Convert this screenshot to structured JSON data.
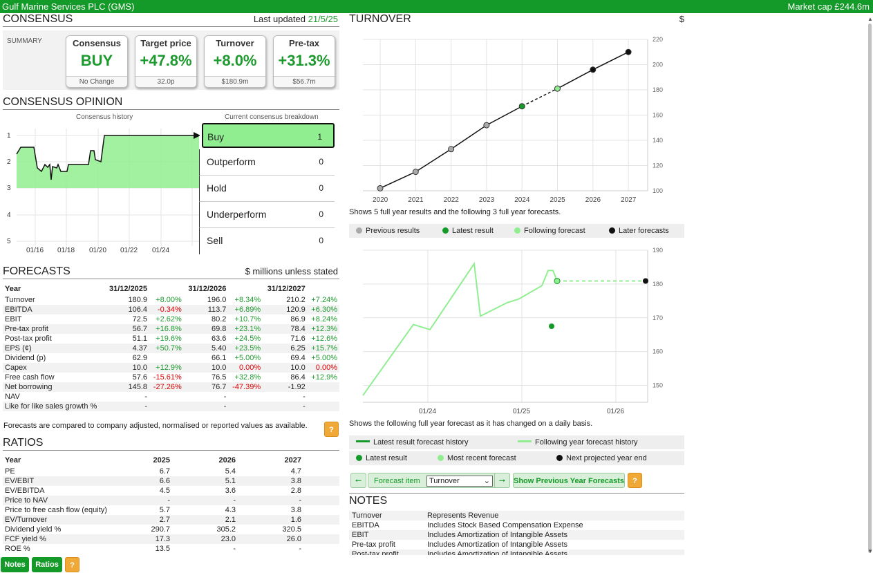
{
  "header": {
    "company": "Gulf Marine Services PLC (GMS)",
    "market_cap": "Market cap £244.6m"
  },
  "consensus": {
    "title": "CONSENSUS",
    "last_updated_label": "Last updated",
    "last_updated_value": "21/5/25",
    "summary_label": "SUMMARY",
    "cards": [
      {
        "head": "Consensus",
        "value": "BUY",
        "foot": "No Change"
      },
      {
        "head": "Target price",
        "value": "+47.8%",
        "foot": "32.0p"
      },
      {
        "head": "Turnover",
        "value": "+8.0%",
        "foot": "$180.9m"
      },
      {
        "head": "Pre-tax",
        "value": "+31.3%",
        "foot": "$56.7m"
      }
    ]
  },
  "opinion": {
    "title": "CONSENSUS OPINION",
    "history_label": "Consensus history",
    "breakdown_label": "Current consensus breakdown",
    "y_labels": [
      "1",
      "2",
      "3",
      "4",
      "5"
    ],
    "x_labels": [
      "01/16",
      "01/18",
      "01/20",
      "01/22",
      "01/24"
    ],
    "breakdown": [
      {
        "label": "Buy",
        "count": "1"
      },
      {
        "label": "Outperform",
        "count": "0"
      },
      {
        "label": "Hold",
        "count": "0"
      },
      {
        "label": "Underperform",
        "count": "0"
      },
      {
        "label": "Sell",
        "count": "0"
      }
    ]
  },
  "forecasts": {
    "title": "FORECASTS",
    "unit_note": "$ millions unless stated",
    "head": [
      "Year",
      "31/12/2025",
      "",
      "31/12/2026",
      "",
      "31/12/2027",
      ""
    ],
    "rows": [
      [
        "Turnover",
        "180.9",
        "+8.00%",
        "196.0",
        "+8.34%",
        "210.2",
        "+7.24%"
      ],
      [
        "EBITDA",
        "106.4",
        "-0.34%",
        "113.7",
        "+6.89%",
        "120.9",
        "+6.30%"
      ],
      [
        "EBIT",
        "72.5",
        "+2.62%",
        "80.2",
        "+10.7%",
        "86.9",
        "+8.24%"
      ],
      [
        "Pre-tax profit",
        "56.7",
        "+16.8%",
        "69.8",
        "+23.1%",
        "78.4",
        "+12.3%"
      ],
      [
        "Post-tax profit",
        "51.1",
        "+19.6%",
        "63.6",
        "+24.5%",
        "71.6",
        "+12.6%"
      ],
      [
        "EPS (¢)",
        "4.37",
        "+50.7%",
        "5.40",
        "+23.5%",
        "6.25",
        "+15.7%"
      ],
      [
        "Dividend (p)",
        "62.9",
        "",
        "66.1",
        "+5.00%",
        "69.4",
        "+5.00%"
      ],
      [
        "Capex",
        "10.0",
        "+12.9%",
        "10.0",
        "0.00%",
        "10.0",
        "0.00%"
      ],
      [
        "Free cash flow",
        "57.6",
        "-15.61%",
        "76.5",
        "+32.8%",
        "86.4",
        "+12.9%"
      ],
      [
        "Net borrowing",
        "145.8",
        "-27.26%",
        "76.7",
        "-47.39%",
        "-1.92",
        ""
      ],
      [
        "NAV",
        "-",
        "",
        "-",
        "",
        "-",
        ""
      ],
      [
        "Like for like sales growth %",
        "-",
        "",
        "-",
        "",
        "-",
        ""
      ]
    ],
    "note": "Forecasts are compared to company adjusted, normalised or reported values as available."
  },
  "ratios": {
    "title": "RATIOS",
    "head": [
      "Year",
      "2025",
      "2026",
      "2027"
    ],
    "rows": [
      [
        "PE",
        "6.7",
        "5.4",
        "4.7"
      ],
      [
        "EV/EBIT",
        "6.6",
        "5.1",
        "3.8"
      ],
      [
        "EV/EBITDA",
        "4.5",
        "3.6",
        "2.8"
      ],
      [
        "Price to NAV",
        "-",
        "-",
        "-"
      ],
      [
        "Price to free cash flow (equity)",
        "5.7",
        "4.3",
        "3.8"
      ],
      [
        "EV/Turnover",
        "2.7",
        "2.1",
        "1.6"
      ],
      [
        "Dividend yield %",
        "290.7",
        "305.2",
        "320.5"
      ],
      [
        "FCF yield %",
        "17.3",
        "23.0",
        "26.0"
      ],
      [
        "ROE %",
        "13.5",
        "-",
        "-"
      ]
    ]
  },
  "buttons": {
    "notes": "Notes",
    "ratios": "Ratios",
    "help": "?",
    "forecast_item": "Forecast item",
    "forecast_select": "Turnover",
    "show_prev": "Show Previous Year Forecasts"
  },
  "turnover": {
    "title": "TURNOVER",
    "currency": "$",
    "caption1": "Shows 5 full year results and the following 3 full year forecasts.",
    "legend1": [
      "Previous results",
      "Latest result",
      "Following forecast",
      "Later forecasts"
    ],
    "caption2": "Shows the following full year forecast as it has changed on a daily basis.",
    "legend2": [
      "Latest result forecast history",
      "Following year forecast history"
    ],
    "legend3": [
      "Latest result",
      "Most recent forecast",
      "Next projected year end"
    ]
  },
  "notes": {
    "title": "NOTES",
    "rows": [
      [
        "Turnover",
        "Represents Revenue"
      ],
      [
        "EBITDA",
        "Includes Stock Based Compensation Expense"
      ],
      [
        "EBIT",
        "Includes Amortization of Intangible Assets"
      ],
      [
        "Pre-tax profit",
        "Includes Amortization of Intangible Assets"
      ],
      [
        "Post-tax profit",
        "Includes Amortization of Intangible Assets"
      ]
    ]
  },
  "colors": {
    "green": "#139a28",
    "light_green": "#90ee90",
    "gray": "#aaaaaa",
    "orange": "#f0a836"
  },
  "chart_data": [
    {
      "type": "line",
      "title": "",
      "x": [
        "2020",
        "2021",
        "2022",
        "2023",
        "2024",
        "2025",
        "2026",
        "2027"
      ],
      "values": [
        102,
        115,
        133,
        152,
        167,
        181,
        196,
        210
      ],
      "ylim": [
        100,
        220
      ],
      "y_ticks": [
        "100",
        "120",
        "140",
        "160",
        "180",
        "200",
        "220"
      ],
      "series_roles": [
        "previous",
        "previous",
        "previous",
        "previous",
        "latest",
        "following",
        "later",
        "later"
      ]
    },
    {
      "type": "line",
      "title": "",
      "x_ticks": [
        "01/24",
        "01/25",
        "01/26"
      ],
      "ylim": [
        145,
        190
      ],
      "y_ticks": [
        "150",
        "160",
        "170",
        "180",
        "190"
      ],
      "series": [
        {
          "name": "Following year forecast history",
          "values": [
            147,
            168,
            166.5,
            186,
            170.5,
            174.5,
            175.5,
            179.5,
            184,
            184,
            180.9
          ]
        }
      ],
      "latest_result": 167.5,
      "most_recent_forecast": 180.9,
      "next_projected_year_end": 180.9
    },
    {
      "type": "area",
      "title": "",
      "series": [
        {
          "name": "Consensus history",
          "values": [
            1.5,
            1.5,
            2,
            2.3,
            2.1,
            2.4,
            2.2,
            2.2,
            1.7,
            2,
            1
          ]
        }
      ],
      "ylim": [
        1,
        5
      ]
    }
  ]
}
